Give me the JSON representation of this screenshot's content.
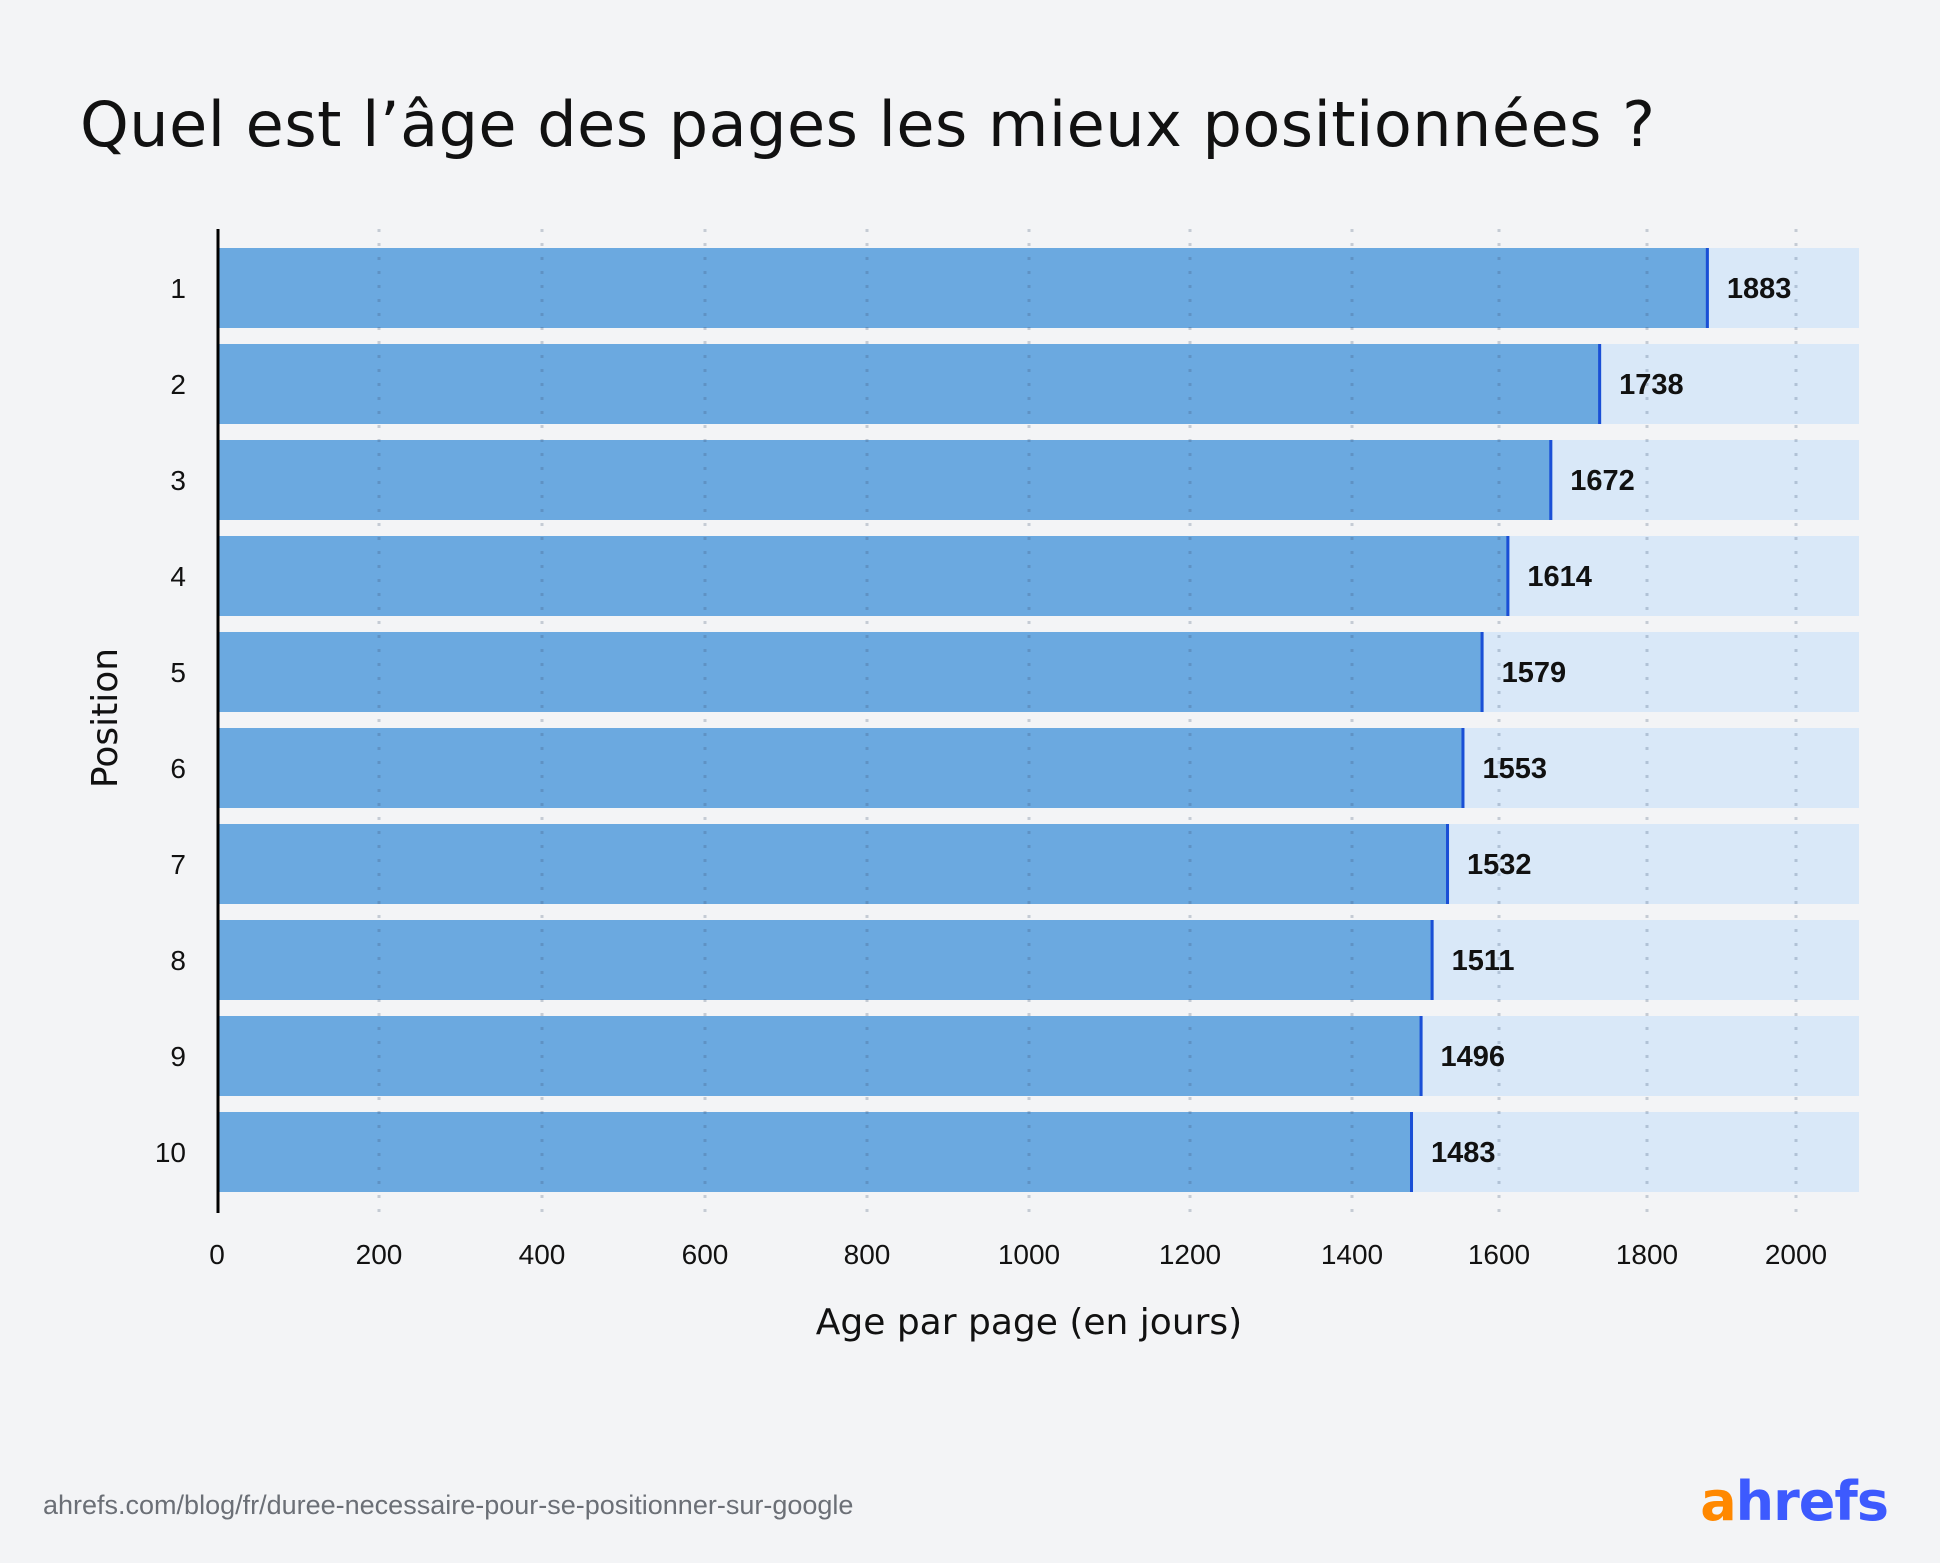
{
  "title": "Quel est l’âge des pages les mieux positionnées ?",
  "footer": {
    "url": "ahrefs.com/blog/fr/duree-necessaire-pour-se-positionner-sur-google",
    "logo_a": "a",
    "logo_rest": "hrefs",
    "logo_text": "ahrefs"
  },
  "colors": {
    "bar": "#6ba9e0",
    "bar_track": "#d9e8f8",
    "bar_end": "#1a4fd6",
    "logo_orange": "#ff8800",
    "logo_blue": "#3d5afe"
  },
  "chart_data": {
    "type": "bar",
    "orientation": "horizontal",
    "title": "Quel est l’âge des pages les mieux positionnées ?",
    "xlabel": "Age par page (en jours)",
    "ylabel": "Position",
    "categories": [
      "1",
      "2",
      "3",
      "4",
      "5",
      "6",
      "7",
      "8",
      "9",
      "10"
    ],
    "values": [
      1883,
      1738,
      1672,
      1614,
      1579,
      1553,
      1532,
      1511,
      1496,
      1483
    ],
    "xticks": [
      "0",
      "200",
      "400",
      "600",
      "800",
      "1000",
      "1200",
      "1400",
      "1600",
      "1800",
      "2000"
    ],
    "xlim": [
      0,
      2080
    ],
    "grid": "vertical dotted",
    "data_labels": true
  }
}
